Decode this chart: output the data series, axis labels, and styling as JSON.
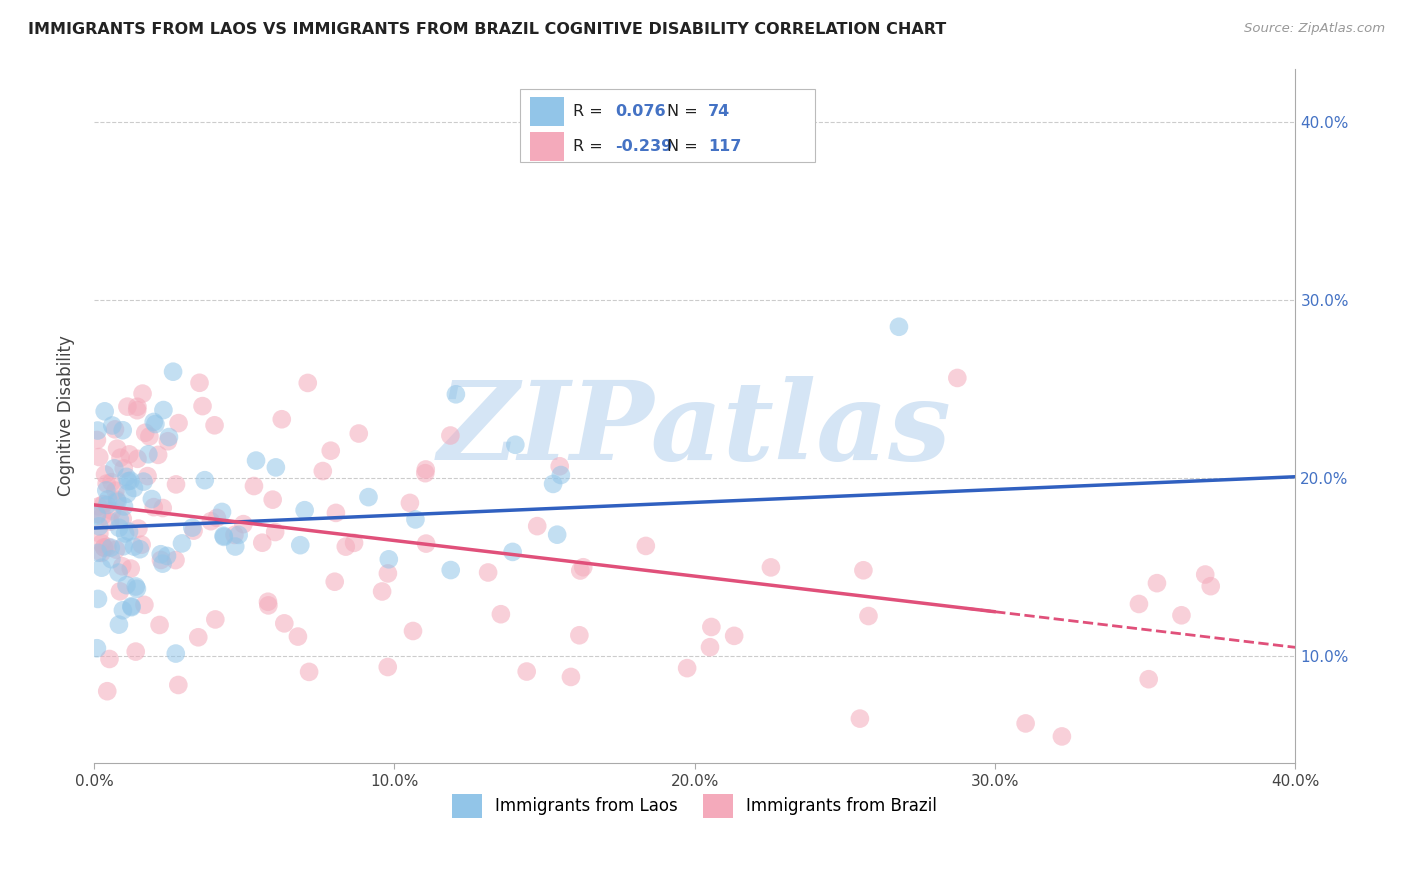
{
  "title": "IMMIGRANTS FROM LAOS VS IMMIGRANTS FROM BRAZIL COGNITIVE DISABILITY CORRELATION CHART",
  "source": "Source: ZipAtlas.com",
  "ylabel": "Cognitive Disability",
  "laos_R": 0.076,
  "laos_N": 74,
  "brazil_R": -0.239,
  "brazil_N": 117,
  "laos_color": "#92C5E8",
  "brazil_color": "#F4AABB",
  "laos_line_color": "#3060C0",
  "brazil_line_color": "#E0507A",
  "watermark": "ZIPatlas",
  "watermark_color": "#D5E5F5",
  "xlim": [
    0.0,
    0.4
  ],
  "ylim": [
    0.04,
    0.43
  ],
  "yticks": [
    0.1,
    0.2,
    0.3,
    0.4
  ],
  "ytick_labels": [
    "10.0%",
    "20.0%",
    "30.0%",
    "40.0%"
  ],
  "xticks": [
    0.0,
    0.1,
    0.2,
    0.3,
    0.4
  ],
  "xtick_labels": [
    "0.0%",
    "10.0%",
    "20.0%",
    "30.0%",
    "40.0%"
  ],
  "laos_intercept": 0.172,
  "laos_slope": 0.072,
  "brazil_intercept": 0.185,
  "brazil_slope": -0.2,
  "bg_color": "#FFFFFF",
  "grid_color": "#CCCCCC"
}
